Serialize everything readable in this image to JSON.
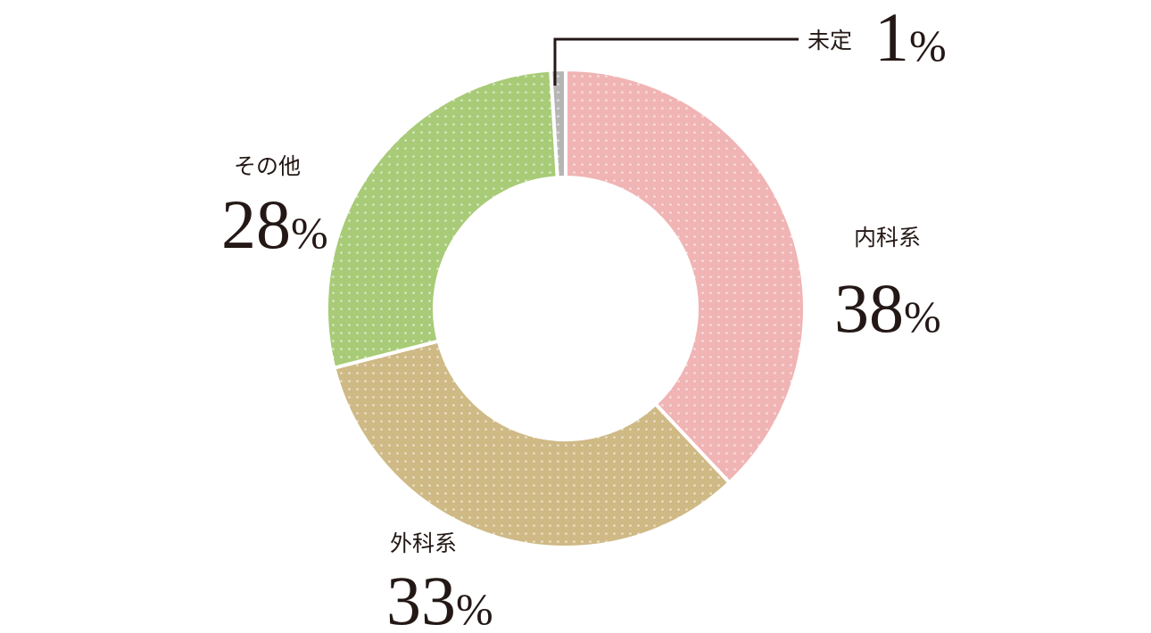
{
  "chart_data": {
    "type": "pie",
    "variant": "donut",
    "title": "",
    "categories": [
      "内科系",
      "外科系",
      "その他",
      "未定"
    ],
    "values": [
      38,
      33,
      28,
      1
    ],
    "unit": "%",
    "colors": [
      "#f0b4b4",
      "#cfb985",
      "#a8cb77",
      "#b5b5b5"
    ],
    "dot_color": "#ffffff",
    "data_labels": [
      {
        "category": "内科系",
        "number": "38",
        "unit": "%"
      },
      {
        "category": "外科系",
        "number": "33",
        "unit": "%"
      },
      {
        "category": "その他",
        "number": "28",
        "unit": "%"
      },
      {
        "category": "未定",
        "number": "1",
        "unit": "%"
      }
    ],
    "legend": "none"
  }
}
